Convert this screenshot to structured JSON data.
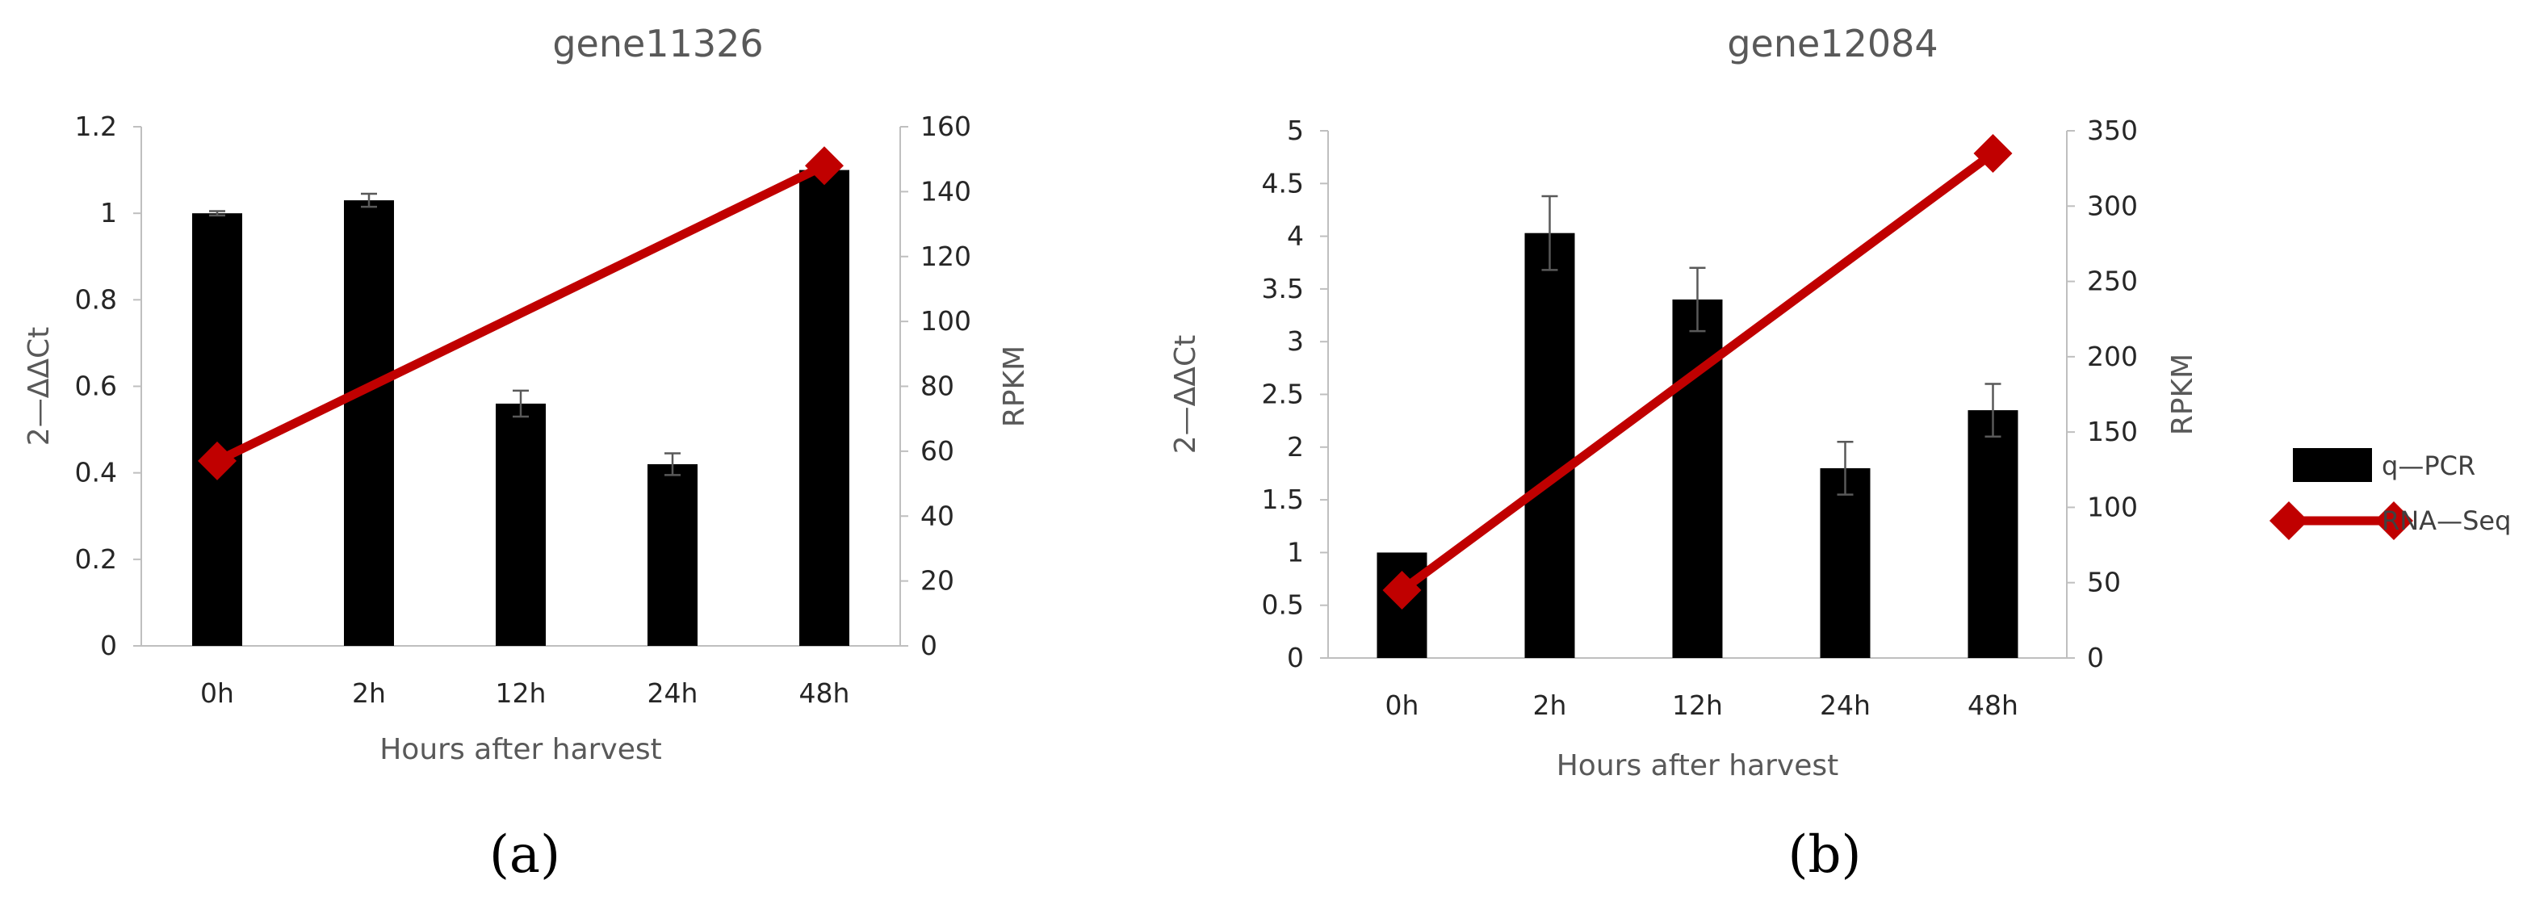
{
  "colors": {
    "bar": "#000000",
    "line": "#c00000",
    "axis": "#bfbfbf"
  },
  "legend": {
    "placement": "right",
    "entries": [
      "q—PCR",
      "RNA—Seq"
    ]
  },
  "chart_data": [
    {
      "type": "bar",
      "panel_label": "(a)",
      "title": "gene11326",
      "xlabel": "Hours after harvest",
      "ylabel": "2—ΔΔCt",
      "y2label": "RPKM",
      "categories": [
        "0h",
        "2h",
        "12h",
        "24h",
        "48h"
      ],
      "ylim": [
        0,
        1.2
      ],
      "yticks": [
        "0",
        "0.2",
        "0.4",
        "0.6",
        "0.8",
        "1",
        "1.2"
      ],
      "y2lim": [
        0,
        160
      ],
      "y2ticks": [
        "0",
        "20",
        "40",
        "60",
        "80",
        "100",
        "120",
        "140",
        "160"
      ],
      "grid": false,
      "series": [
        {
          "name": "q—PCR",
          "type": "bar",
          "axis": "left",
          "values": [
            1.0,
            1.03,
            0.56,
            0.42,
            1.1
          ],
          "errors": [
            0.005,
            0.015,
            0.03,
            0.025,
            0.0
          ]
        },
        {
          "name": "RNA—Seq",
          "type": "line",
          "axis": "right",
          "x": [
            "0h",
            "48h"
          ],
          "values": [
            57,
            148
          ]
        }
      ]
    },
    {
      "type": "bar",
      "panel_label": "(b)",
      "title": "gene12084",
      "xlabel": "Hours after harvest",
      "ylabel": "2—ΔΔCt",
      "y2label": "RPKM",
      "categories": [
        "0h",
        "2h",
        "12h",
        "24h",
        "48h"
      ],
      "ylim": [
        0,
        5
      ],
      "yticks": [
        "0",
        "0.5",
        "1",
        "1.5",
        "2",
        "2.5",
        "3",
        "3.5",
        "4",
        "4.5",
        "5"
      ],
      "y2lim": [
        0,
        350
      ],
      "y2ticks": [
        "0",
        "50",
        "100",
        "150",
        "200",
        "250",
        "300",
        "350"
      ],
      "grid": false,
      "series": [
        {
          "name": "q—PCR",
          "type": "bar",
          "axis": "left",
          "values": [
            1.0,
            4.03,
            3.4,
            1.8,
            2.35
          ],
          "errors": [
            0.0,
            0.35,
            0.3,
            0.25,
            0.25
          ]
        },
        {
          "name": "RNA—Seq",
          "type": "line",
          "axis": "right",
          "x": [
            "0h",
            "48h"
          ],
          "values": [
            45,
            335
          ]
        }
      ]
    }
  ]
}
